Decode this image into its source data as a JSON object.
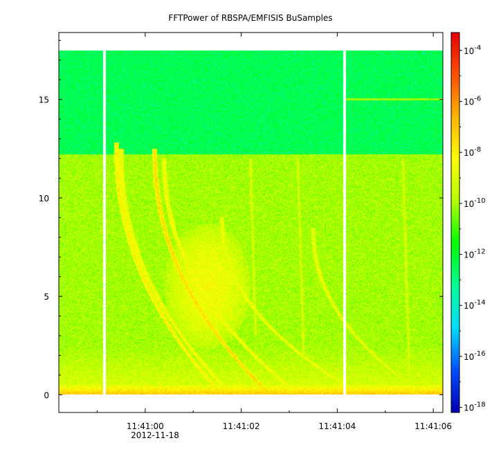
{
  "chart_data": {
    "type": "heatmap",
    "title": "FFTPower of RBSPA/EMFISIS  BuSamples",
    "xlabel": "",
    "ylabel": "",
    "x_tick_labels": [
      "11:41:00",
      "11:41:02",
      "11:41:04",
      "11:41:06"
    ],
    "x_tick_values_s": [
      0,
      2,
      4,
      6
    ],
    "x_date_label": "2012-11-18",
    "x_range_s": [
      -1.8,
      6.2
    ],
    "y_tick_labels": [
      "0",
      "5",
      "10",
      "15"
    ],
    "y_tick_values": [
      0,
      5,
      10,
      15
    ],
    "y_range": [
      -0.9,
      18.4
    ],
    "data_extent": {
      "x_s": [
        -1.8,
        6.2
      ],
      "y": [
        0,
        17.5
      ]
    },
    "gaps_s": [
      -0.85,
      4.15
    ],
    "colorbar": {
      "scale": "log",
      "exponents": [
        -4,
        -6,
        -8,
        -10,
        -12,
        -14,
        -16,
        -18
      ],
      "tick_base": "10",
      "range_exp": [
        -18.2,
        -3.3
      ],
      "colors": [
        "#0000b4",
        "#0050ff",
        "#00dcff",
        "#00ff96",
        "#00ff00",
        "#b4ff00",
        "#ffff00",
        "#ffb400",
        "#ff5000",
        "#e60000"
      ]
    },
    "bands": [
      {
        "y_range": [
          12.2,
          17.5
        ],
        "log_power": -12.5,
        "description_level": "background"
      },
      {
        "y_range": [
          0,
          12.2
        ],
        "log_power": -10.0
      },
      {
        "y_range": [
          0,
          2.5
        ],
        "log_power": -9.0
      },
      {
        "y_range": [
          0,
          0.5
        ],
        "log_power": -7.0
      }
    ],
    "features": [
      {
        "kind": "dispersive_trace",
        "x0_s": -0.6,
        "x1_s": 1.6,
        "top": 12.8,
        "log_power": -8.0
      },
      {
        "kind": "dispersive_trace",
        "x0_s": -0.5,
        "x1_s": 1.8,
        "top": 12.5,
        "log_power": -8.3
      },
      {
        "kind": "dispersive_trace",
        "x0_s": 0.2,
        "x1_s": 2.6,
        "top": 12.5,
        "log_power": -7.5
      },
      {
        "kind": "dispersive_trace",
        "x0_s": 0.4,
        "x1_s": 3.2,
        "top": 12.0,
        "log_power": -8.3
      },
      {
        "kind": "dispersive_trace",
        "x0_s": 1.6,
        "x1_s": 4.5,
        "top": 9.0,
        "log_power": -8.5
      },
      {
        "kind": "dispersive_trace",
        "x0_s": 3.5,
        "x1_s": 5.8,
        "top": 8.5,
        "log_power": -8.7
      },
      {
        "kind": "blob",
        "x_s": 1.3,
        "y": 5.5,
        "log_power": -8.5
      },
      {
        "kind": "streak",
        "x_s": 2.3,
        "y": [
          3.0,
          12.0
        ],
        "log_power": -9.0
      },
      {
        "kind": "streak",
        "x_s": 3.3,
        "y": [
          2.0,
          12.0
        ],
        "log_power": -9.0
      },
      {
        "kind": "streak",
        "x_s": 5.5,
        "y": [
          1.0,
          12.0
        ],
        "log_power": -9.0
      },
      {
        "kind": "line",
        "x_s": [
          4.15,
          6.2
        ],
        "y": 15.0,
        "log_power": -10.0
      }
    ]
  }
}
